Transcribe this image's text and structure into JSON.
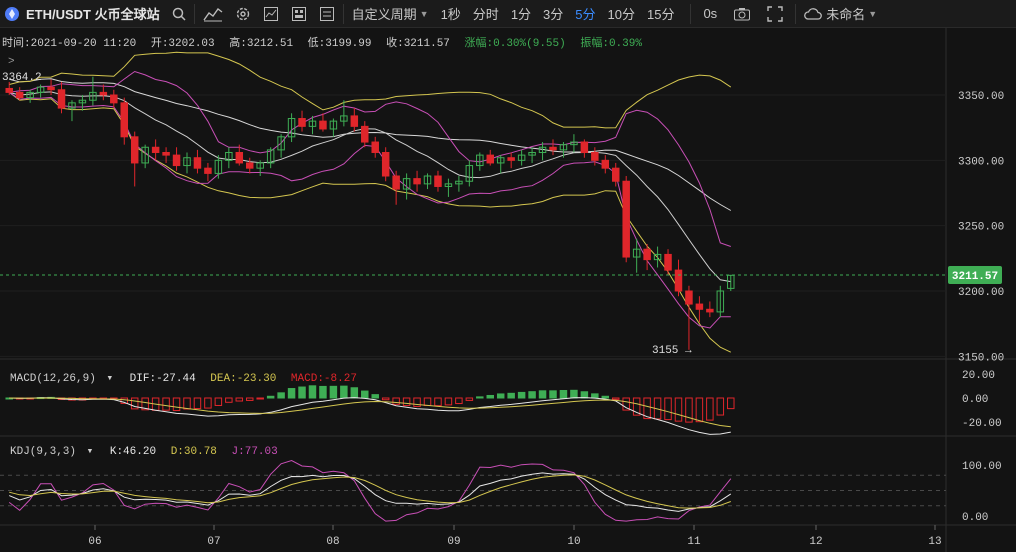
{
  "toolbar": {
    "symbol": "ETH/USDT 火币全球站",
    "period_menu": "自定义周期",
    "periods": [
      "1秒",
      "分时",
      "1分",
      "3分",
      "5分",
      "10分",
      "15分"
    ],
    "active_period": "5分",
    "zero_label": "0s",
    "layout_name": "未命名"
  },
  "ohlc": {
    "time": "时间:2021-09-20 11:20",
    "open": "开:3202.03",
    "high": "高:3212.51",
    "low": "低:3199.99",
    "close": "收:3211.57",
    "change": "涨幅:0.30%(9.55)",
    "amplitude": "振幅:0.39%"
  },
  "colors": {
    "up": "#3fae55",
    "down": "#e0262b",
    "ma_slow": "#d8d8d8",
    "ma_mid": "#cfcfcf",
    "boll_outer": "#d4c650",
    "boll_inner": "#c84fb6",
    "dif": "#e6e6e6",
    "dea": "#d4c650",
    "k": "#e6e6e6",
    "d": "#d4c650",
    "j": "#c84fb6",
    "price_tag": "#3fae55"
  },
  "price_panel": {
    "high_mark": "3364.2",
    "low_mark": "3155 →",
    "current_price": "3211.57",
    "y_ticks": [
      "3350.00",
      "3300.00",
      "3250.00",
      "3200.00",
      "3150.00"
    ],
    "y_tick_values": [
      3350,
      3300,
      3250,
      3200,
      3150
    ]
  },
  "macd": {
    "label": "MACD(12,26,9)",
    "dif": "DIF:-27.44",
    "dea": "DEA:-23.30",
    "macd": "MACD:-8.27",
    "y_ticks": [
      "20.00",
      "0.00",
      "-20.00"
    ],
    "y_tick_values": [
      20,
      0,
      -20
    ]
  },
  "kdj": {
    "label": "KDJ(9,3,3)",
    "k": "K:46.20",
    "d": "D:30.78",
    "j": "J:77.03",
    "y_ticks": [
      "100.00",
      "0.00"
    ],
    "y_tick_values": [
      100,
      0
    ]
  },
  "x_axis": {
    "labels": [
      "06",
      "07",
      "08",
      "09",
      "10",
      "11",
      "12",
      "13"
    ]
  },
  "chart_data": {
    "type": "candlestick",
    "candles_approx": [
      [
        3355,
        3360,
        3350,
        3352
      ],
      [
        3352,
        3356,
        3346,
        3348
      ],
      [
        3348,
        3354,
        3344,
        3352
      ],
      [
        3352,
        3358,
        3348,
        3356
      ],
      [
        3356,
        3362,
        3350,
        3354
      ],
      [
        3354,
        3360,
        3336,
        3340
      ],
      [
        3340,
        3346,
        3330,
        3344
      ],
      [
        3344,
        3350,
        3338,
        3346
      ],
      [
        3346,
        3364,
        3342,
        3352
      ],
      [
        3352,
        3358,
        3346,
        3350
      ],
      [
        3350,
        3354,
        3340,
        3344
      ],
      [
        3344,
        3348,
        3312,
        3318
      ],
      [
        3318,
        3322,
        3280,
        3298
      ],
      [
        3298,
        3312,
        3294,
        3310
      ],
      [
        3310,
        3316,
        3300,
        3306
      ],
      [
        3306,
        3310,
        3298,
        3304
      ],
      [
        3304,
        3310,
        3292,
        3296
      ],
      [
        3296,
        3306,
        3290,
        3302
      ],
      [
        3302,
        3308,
        3290,
        3294
      ],
      [
        3294,
        3298,
        3284,
        3290
      ],
      [
        3290,
        3304,
        3286,
        3300
      ],
      [
        3300,
        3310,
        3294,
        3306
      ],
      [
        3306,
        3312,
        3296,
        3298
      ],
      [
        3298,
        3302,
        3290,
        3294
      ],
      [
        3294,
        3300,
        3288,
        3298
      ],
      [
        3298,
        3310,
        3294,
        3308
      ],
      [
        3308,
        3320,
        3302,
        3318
      ],
      [
        3318,
        3336,
        3314,
        3332
      ],
      [
        3332,
        3338,
        3322,
        3326
      ],
      [
        3326,
        3334,
        3320,
        3330
      ],
      [
        3330,
        3336,
        3322,
        3324
      ],
      [
        3324,
        3332,
        3318,
        3330
      ],
      [
        3330,
        3346,
        3326,
        3334
      ],
      [
        3334,
        3340,
        3322,
        3326
      ],
      [
        3326,
        3330,
        3310,
        3314
      ],
      [
        3314,
        3318,
        3302,
        3306
      ],
      [
        3306,
        3310,
        3284,
        3288
      ],
      [
        3288,
        3292,
        3266,
        3278
      ],
      [
        3278,
        3290,
        3270,
        3286
      ],
      [
        3286,
        3292,
        3276,
        3282
      ],
      [
        3282,
        3290,
        3278,
        3288
      ],
      [
        3288,
        3292,
        3276,
        3280
      ],
      [
        3280,
        3286,
        3272,
        3282
      ],
      [
        3282,
        3288,
        3276,
        3284
      ],
      [
        3284,
        3300,
        3280,
        3296
      ],
      [
        3296,
        3306,
        3292,
        3304
      ],
      [
        3304,
        3308,
        3296,
        3298
      ],
      [
        3298,
        3304,
        3290,
        3302
      ],
      [
        3302,
        3306,
        3294,
        3300
      ],
      [
        3300,
        3308,
        3296,
        3304
      ],
      [
        3304,
        3310,
        3298,
        3306
      ],
      [
        3306,
        3314,
        3300,
        3310
      ],
      [
        3310,
        3316,
        3304,
        3308
      ],
      [
        3308,
        3314,
        3302,
        3312
      ],
      [
        3312,
        3320,
        3306,
        3314
      ],
      [
        3314,
        3316,
        3302,
        3306
      ],
      [
        3306,
        3310,
        3296,
        3300
      ],
      [
        3300,
        3304,
        3290,
        3294
      ],
      [
        3294,
        3298,
        3280,
        3284
      ],
      [
        3284,
        3288,
        3222,
        3226
      ],
      [
        3226,
        3240,
        3214,
        3232
      ],
      [
        3232,
        3236,
        3216,
        3224
      ],
      [
        3224,
        3234,
        3218,
        3228
      ],
      [
        3228,
        3232,
        3212,
        3216
      ],
      [
        3216,
        3224,
        3196,
        3200
      ],
      [
        3200,
        3204,
        3155,
        3190
      ],
      [
        3190,
        3196,
        3176,
        3186
      ],
      [
        3186,
        3192,
        3180,
        3184
      ],
      [
        3184,
        3204,
        3180,
        3200
      ],
      [
        3202,
        3212,
        3200,
        3212
      ]
    ]
  }
}
